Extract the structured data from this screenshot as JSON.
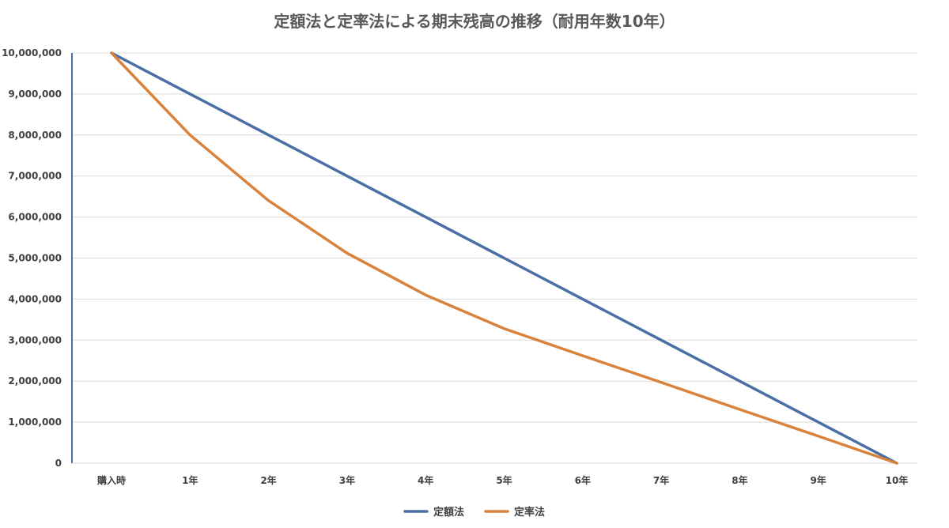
{
  "chart_data": {
    "type": "line",
    "title": "定額法と定率法による期末残高の推移（耐用年数10年）",
    "xlabel": "",
    "ylabel": "",
    "categories": [
      "購入時",
      "1年",
      "2年",
      "3年",
      "4年",
      "5年",
      "6年",
      "7年",
      "8年",
      "9年",
      "10年"
    ],
    "ylim": [
      0,
      10000000
    ],
    "yticks": [
      0,
      1000000,
      2000000,
      3000000,
      4000000,
      5000000,
      6000000,
      7000000,
      8000000,
      9000000,
      10000000
    ],
    "ytick_labels": [
      "0",
      "1,000,000",
      "2,000,000",
      "3,000,000",
      "4,000,000",
      "5,000,000",
      "6,000,000",
      "7,000,000",
      "8,000,000",
      "9,000,000",
      "10,000,000"
    ],
    "grid": true,
    "legend_position": "bottom",
    "series": [
      {
        "name": "定額法",
        "color": "#4a6fa5",
        "values": [
          10000000,
          9000000,
          8000000,
          7000000,
          6000000,
          5000000,
          4000000,
          3000000,
          2000000,
          1000000,
          0
        ]
      },
      {
        "name": "定率法",
        "color": "#d9823b",
        "values": [
          10000000,
          8000000,
          6400000,
          5120000,
          4100000,
          3280000,
          2620000,
          1970000,
          1310000,
          660000,
          0
        ]
      }
    ]
  }
}
